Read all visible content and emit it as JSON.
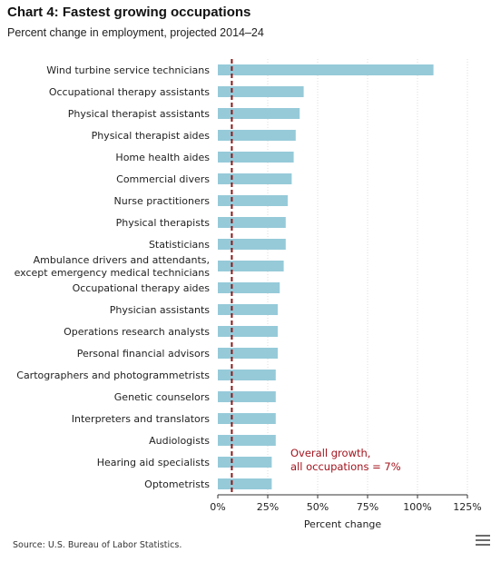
{
  "header": {
    "title": "Chart 4: Fastest growing occupations",
    "subtitle": "Percent change in employment, projected 2014–24"
  },
  "source": "Source: U.S. Bureau of Labor Statistics.",
  "menu": {
    "icon": "hamburger-menu-icon"
  },
  "colors": {
    "bar": "#96cad9",
    "refline": "#8b1a1a",
    "annotation": "#a3141e",
    "grid": "#dddddd"
  },
  "chart_data": {
    "type": "bar",
    "orientation": "horizontal",
    "categories": [
      "Wind turbine service technicians",
      "Occupational therapy assistants",
      "Physical therapist assistants",
      "Physical therapist aides",
      "Home health aides",
      "Commercial divers",
      "Nurse practitioners",
      "Physical therapists",
      "Statisticians",
      "Ambulance drivers and attendants,\nexcept emergency medical technicians",
      "Occupational therapy aides",
      "Physician assistants",
      "Operations research analysts",
      "Personal financial advisors",
      "Cartographers and photogrammetrists",
      "Genetic counselors",
      "Interpreters and translators",
      "Audiologists",
      "Hearing aid specialists",
      "Optometrists"
    ],
    "values": [
      108,
      43,
      41,
      39,
      38,
      37,
      35,
      34,
      34,
      33,
      31,
      30,
      30,
      30,
      29,
      29,
      29,
      29,
      27,
      27
    ],
    "xlabel": "Percent change",
    "xlim": [
      0,
      125
    ],
    "xticks": [
      0,
      25,
      50,
      75,
      100,
      125
    ],
    "xtick_labels": [
      "0%",
      "25%",
      "50%",
      "75%",
      "100%",
      "125%"
    ],
    "grid": "vertical dotted",
    "reference_line": {
      "value": 7,
      "style": "dashed"
    },
    "annotation": {
      "lines": [
        "Overall growth,",
        "all occupations = 7%"
      ]
    }
  }
}
